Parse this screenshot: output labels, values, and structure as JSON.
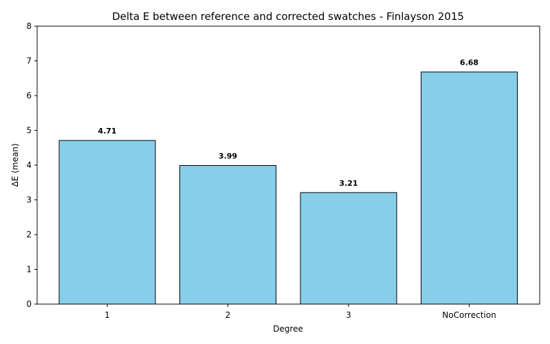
{
  "chart_data": {
    "type": "bar",
    "title": "Delta E between reference and corrected swatches - Finlayson 2015",
    "xlabel": "Degree",
    "ylabel": "ΔE (mean)",
    "categories": [
      "1",
      "2",
      "3",
      "NoCorrection"
    ],
    "values": [
      4.71,
      3.99,
      3.21,
      6.68
    ],
    "data_labels": [
      "4.71",
      "3.99",
      "3.21",
      "6.68"
    ],
    "ylim": [
      0,
      8
    ],
    "yticks": [
      0,
      1,
      2,
      3,
      4,
      5,
      6,
      7,
      8
    ],
    "ytick_labels": [
      "0",
      "1",
      "2",
      "3",
      "4",
      "5",
      "6",
      "7",
      "8"
    ],
    "grid": false,
    "bar_color": "#87CEEB",
    "bar_edge_color": "#000000"
  }
}
